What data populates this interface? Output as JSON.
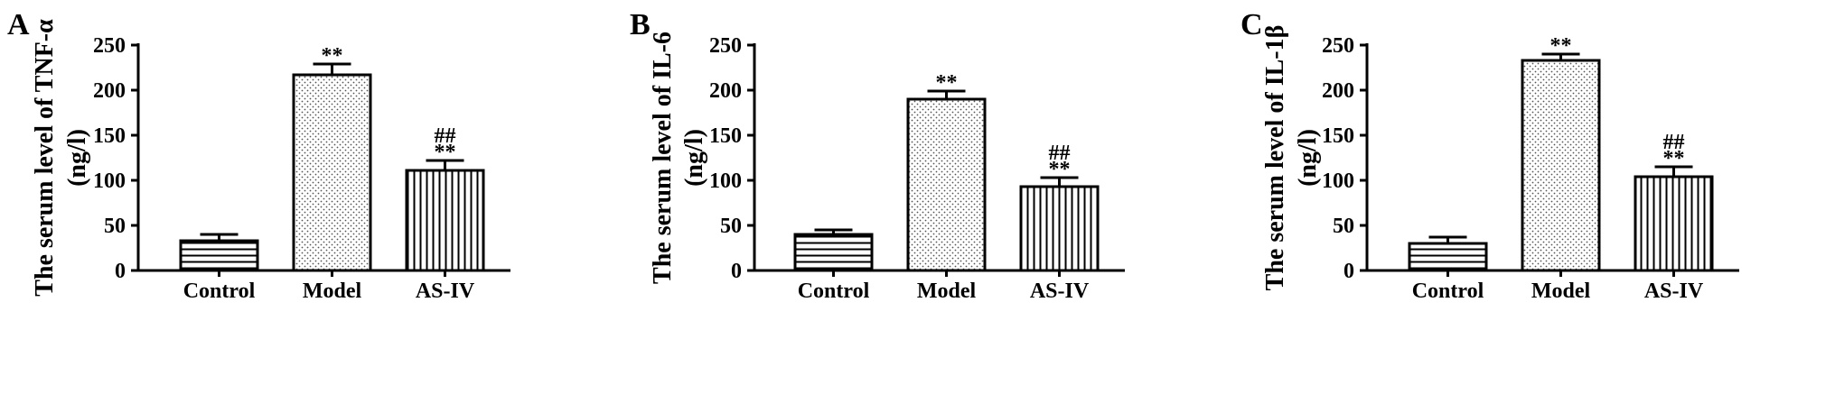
{
  "figure": {
    "panels": [
      "A",
      "B",
      "C"
    ]
  },
  "chart_data": [
    {
      "type": "bar",
      "panel_label": "A",
      "categories": [
        "Control",
        "Model",
        "AS-IV"
      ],
      "values": [
        33,
        217,
        111
      ],
      "errors": [
        7,
        12,
        11
      ],
      "annotations": [
        [],
        [
          "**"
        ],
        [
          "##",
          "**"
        ]
      ],
      "patterns": [
        "horizontal-lines",
        "dots",
        "vertical-lines"
      ],
      "ylabel": [
        "The serum level of TNF-α",
        "(ng/l)"
      ],
      "ylim": [
        0,
        250
      ],
      "yticks": [
        0,
        50,
        100,
        150,
        200,
        250
      ],
      "grid": false,
      "legend": "none"
    },
    {
      "type": "bar",
      "panel_label": "B",
      "categories": [
        "Control",
        "Model",
        "AS-IV"
      ],
      "values": [
        40,
        190,
        93
      ],
      "errors": [
        5,
        9,
        10
      ],
      "annotations": [
        [],
        [
          "**"
        ],
        [
          "##",
          "**"
        ]
      ],
      "patterns": [
        "horizontal-lines",
        "dots",
        "vertical-lines"
      ],
      "ylabel": [
        "The serum level of IL-6",
        "(ng/l)"
      ],
      "ylim": [
        0,
        250
      ],
      "yticks": [
        0,
        50,
        100,
        150,
        200,
        250
      ],
      "grid": false,
      "legend": "none"
    },
    {
      "type": "bar",
      "panel_label": "C",
      "categories": [
        "Control",
        "Model",
        "AS-IV"
      ],
      "values": [
        30,
        233,
        104
      ],
      "errors": [
        7,
        7,
        11
      ],
      "annotations": [
        [],
        [
          "**"
        ],
        [
          "##",
          "**"
        ]
      ],
      "patterns": [
        "horizontal-lines",
        "dots",
        "vertical-lines"
      ],
      "ylabel": [
        "The serum level of IL-1β",
        "(ng/l)"
      ],
      "ylim": [
        0,
        250
      ],
      "yticks": [
        0,
        50,
        100,
        150,
        200,
        250
      ],
      "grid": false,
      "legend": "none"
    }
  ]
}
